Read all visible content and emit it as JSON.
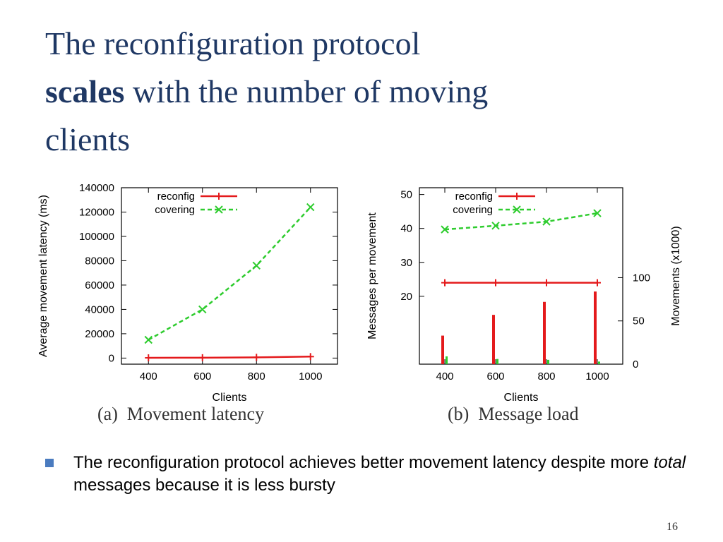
{
  "slide": {
    "title_line1": "The reconfiguration protocol",
    "title_bold": "scales",
    "title_rest": " with the number of moving",
    "title_line3": "clients",
    "bullet_pre": "The reconfiguration protocol achieves better movement latency despite more ",
    "bullet_em": "total",
    "bullet_post": " messages because it is less bursty",
    "page_number": "16"
  },
  "colors": {
    "reconfig": "#e41a1c",
    "covering": "#2ecc2e",
    "axis": "#000000"
  },
  "chart_data": [
    {
      "type": "line",
      "caption": "(a)  Movement latency",
      "xlabel": "Clients",
      "ylabel": "Average movement latency (ms)",
      "x": [
        400,
        600,
        800,
        1000
      ],
      "xticks": [
        "400",
        "600",
        "800",
        "1000"
      ],
      "xlim": [
        300,
        1100
      ],
      "ylim": [
        -5000,
        140000
      ],
      "yticks": [
        "0",
        "20000",
        "40000",
        "60000",
        "80000",
        "100000",
        "120000",
        "140000"
      ],
      "ytick_values": [
        0,
        20000,
        40000,
        60000,
        80000,
        100000,
        120000,
        140000
      ],
      "legend_position": "top-left",
      "series": [
        {
          "name": "reconfig",
          "values": [
            200,
            300,
            600,
            1200
          ]
        },
        {
          "name": "covering",
          "values": [
            15000,
            40000,
            76000,
            124000
          ]
        }
      ]
    },
    {
      "type": "line",
      "caption": "(b)  Message load",
      "xlabel": "Clients",
      "ylabel": "Messages per movement",
      "y2label": "Movements (x1000)",
      "x": [
        400,
        600,
        800,
        1000
      ],
      "xticks": [
        "400",
        "600",
        "800",
        "1000"
      ],
      "xlim": [
        300,
        1100
      ],
      "ylim": [
        0,
        52
      ],
      "yticks": [
        "20",
        "30",
        "40",
        "50"
      ],
      "ytick_values": [
        20,
        30,
        40,
        50
      ],
      "y2lim": [
        0,
        204
      ],
      "y2ticks": [
        "0",
        "50",
        "100"
      ],
      "y2tick_values": [
        0,
        50,
        100
      ],
      "legend_position": "top-left",
      "series": [
        {
          "name": "reconfig",
          "values": [
            24,
            24,
            24,
            24
          ]
        },
        {
          "name": "covering",
          "values": [
            39.7,
            40.8,
            42,
            44.5
          ]
        }
      ],
      "bars": [
        {
          "series": "reconfig",
          "axis": "y2",
          "values": [
            33,
            57,
            72,
            84
          ]
        },
        {
          "series": "covering",
          "axis": "y2",
          "values": [
            9,
            6,
            5,
            3
          ]
        }
      ]
    }
  ]
}
